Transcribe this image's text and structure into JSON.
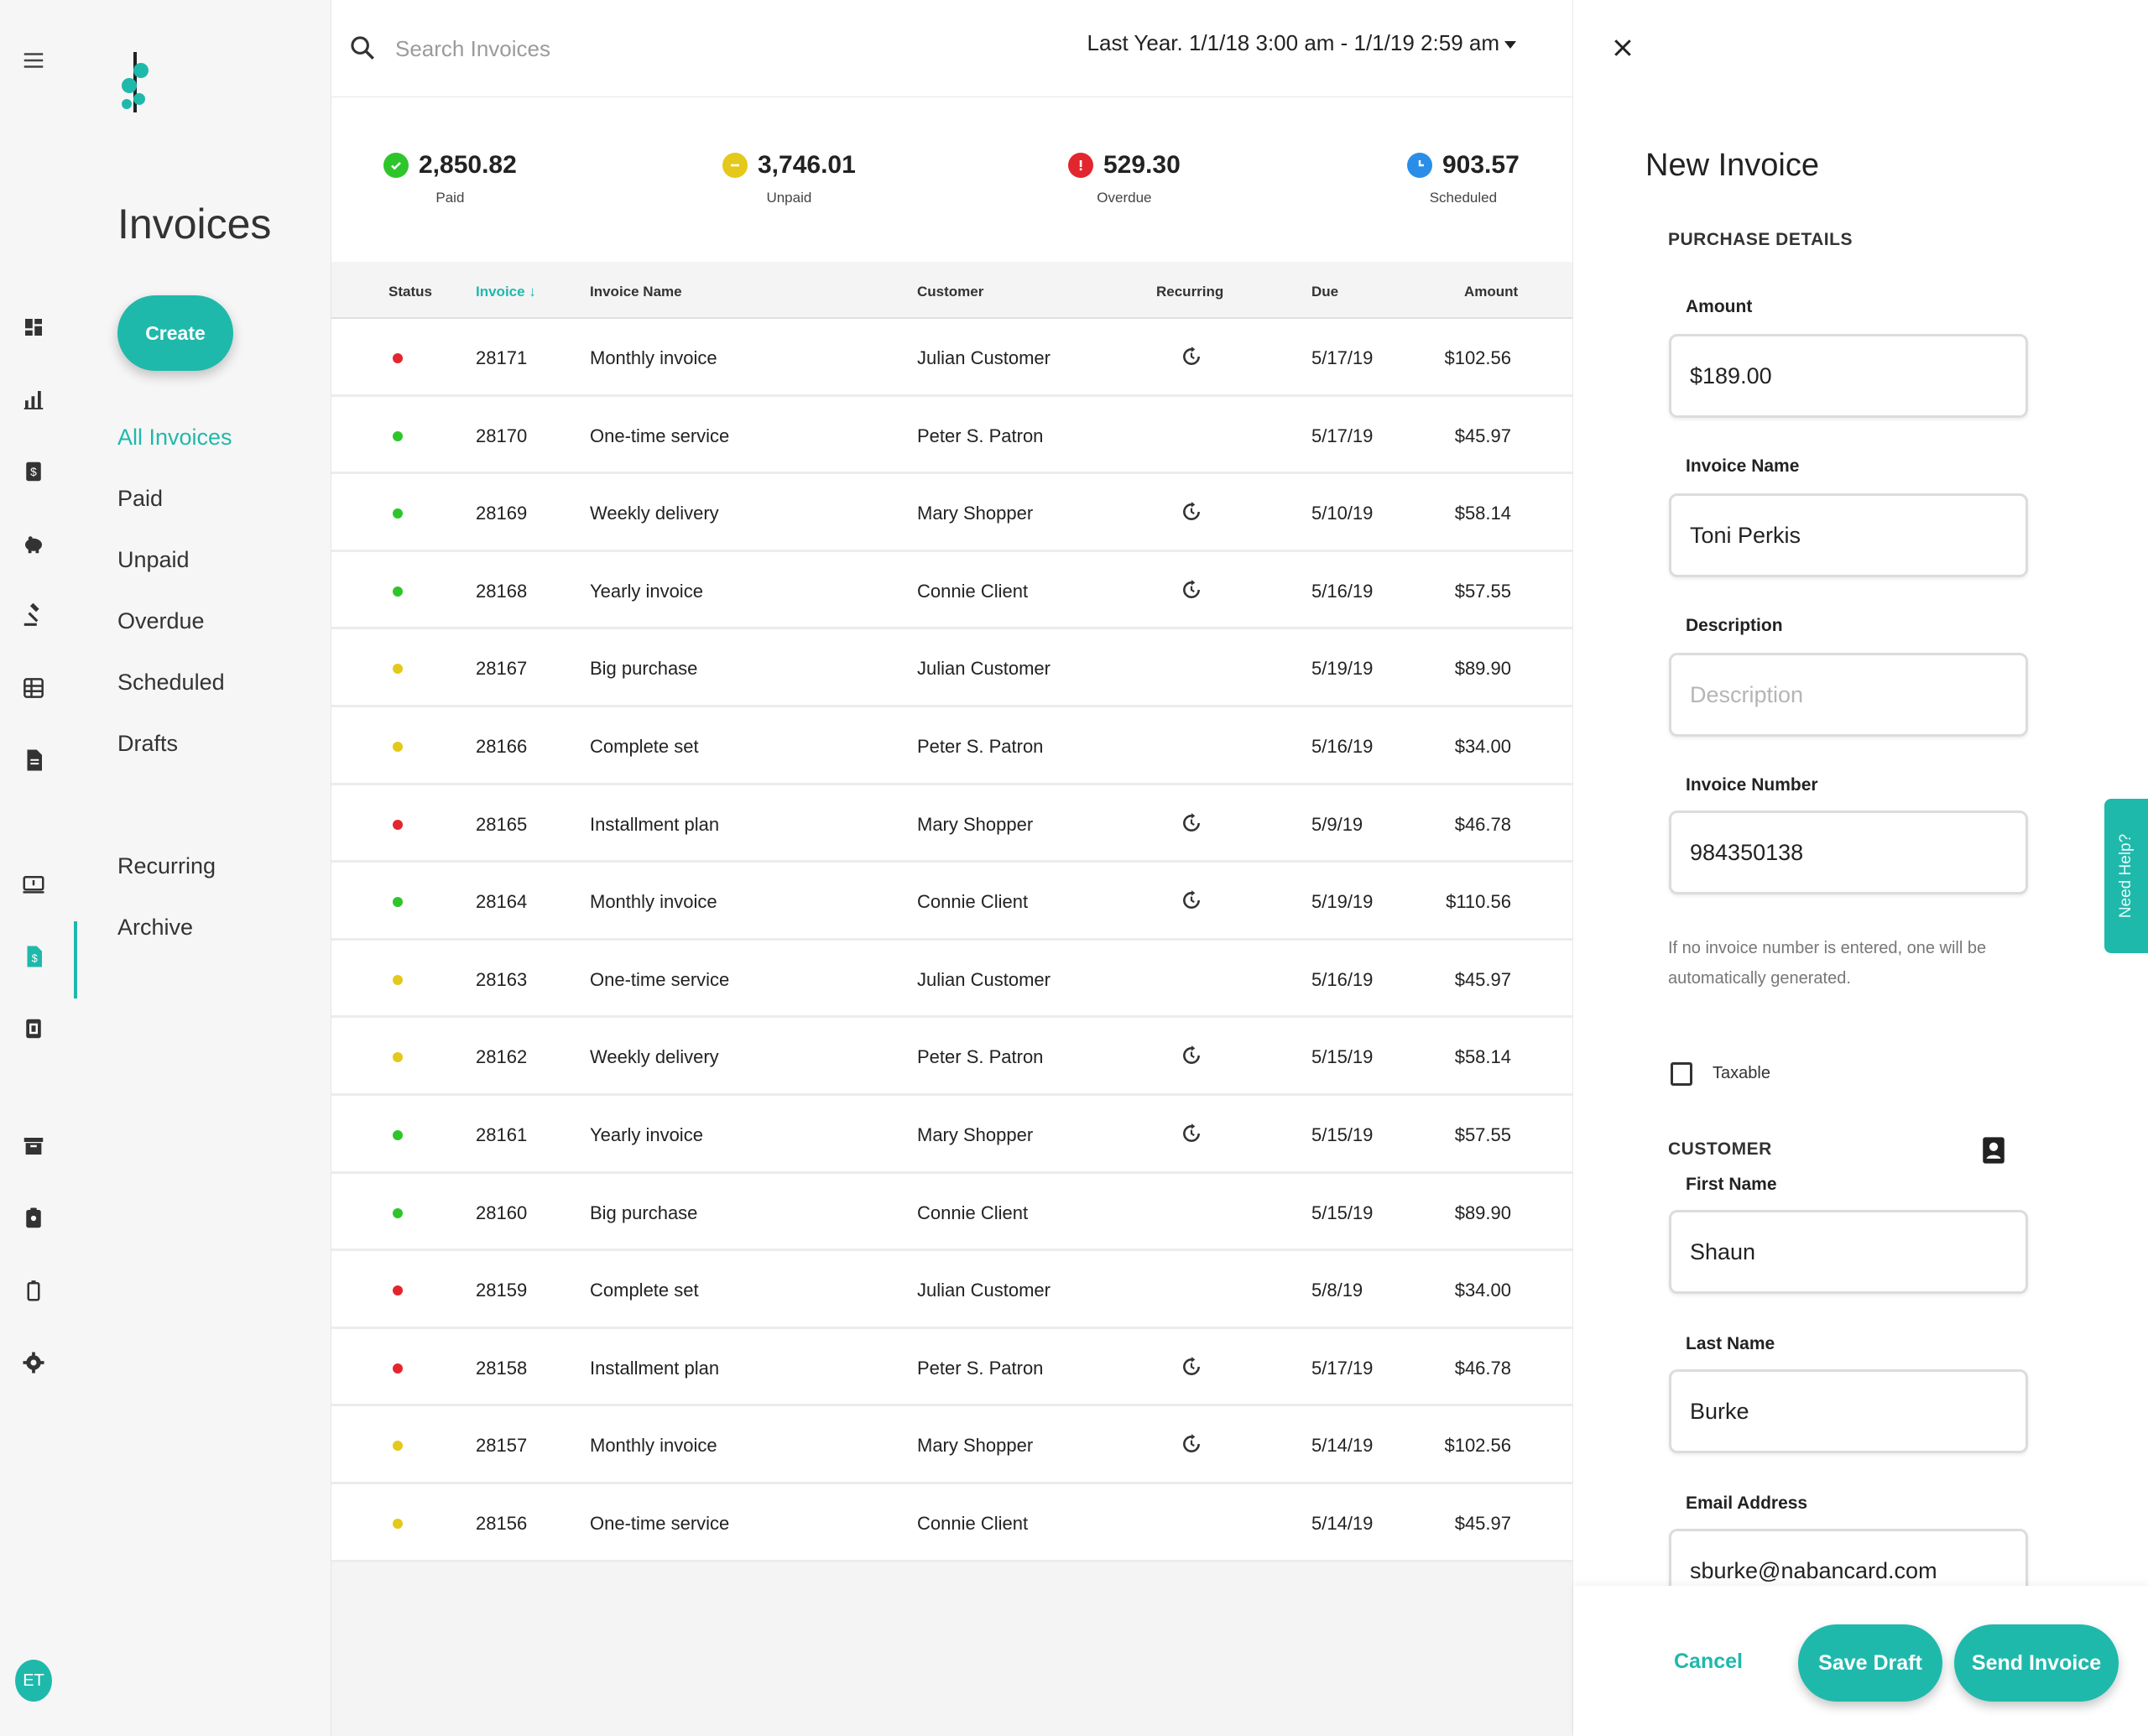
{
  "brand": {
    "accent": "#1fb9ac"
  },
  "user": {
    "initials": "ET"
  },
  "rail": {
    "icons": [
      "menu-icon",
      "dashboard-icon",
      "analytics-icon",
      "dollar-doc-icon",
      "piggy-bank-icon",
      "gavel-icon",
      "grid-table-icon",
      "document-icon",
      "terminal-icon",
      "invoice-icon",
      "receipt-icon",
      "archive-icon",
      "clipboard-icon",
      "battery-icon",
      "gear-icon"
    ]
  },
  "nav": {
    "title": "Invoices",
    "create_label": "Create",
    "items": [
      "All Invoices",
      "Paid",
      "Unpaid",
      "Overdue",
      "Scheduled",
      "Drafts"
    ],
    "items2": [
      "Recurring",
      "Archive"
    ]
  },
  "search": {
    "placeholder": "Search Invoices"
  },
  "date_range": "Last Year. 1/1/18 3:00 am - 1/1/19 2:59 am",
  "summary": [
    {
      "value": "2,850.82",
      "label": "Paid",
      "color": "#2ec52b"
    },
    {
      "value": "3,746.01",
      "label": "Unpaid",
      "color": "#e4c81a"
    },
    {
      "value": "529.30",
      "label": "Overdue",
      "color": "#e3262e"
    },
    {
      "value": "903.57",
      "label": "Scheduled",
      "color": "#2a8ee8"
    }
  ],
  "table": {
    "headers": {
      "status": "Status",
      "invoice": "Invoice",
      "name": "Invoice Name",
      "customer": "Customer",
      "recurring": "Recurring",
      "due": "Due",
      "amount": "Amount"
    },
    "status_colors": {
      "overdue": "#e3262e",
      "paid": "#2ec52b",
      "unpaid": "#e4c81a"
    },
    "rows": [
      {
        "status": "overdue",
        "invoice": "28171",
        "name": "Monthly invoice",
        "customer": "Julian Customer",
        "recurring": true,
        "due": "5/17/19",
        "amount": "$102.56"
      },
      {
        "status": "paid",
        "invoice": "28170",
        "name": "One-time service",
        "customer": "Peter S. Patron",
        "recurring": false,
        "due": "5/17/19",
        "amount": "$45.97"
      },
      {
        "status": "paid",
        "invoice": "28169",
        "name": "Weekly delivery",
        "customer": "Mary Shopper",
        "recurring": true,
        "due": "5/10/19",
        "amount": "$58.14"
      },
      {
        "status": "paid",
        "invoice": "28168",
        "name": "Yearly invoice",
        "customer": "Connie Client",
        "recurring": true,
        "due": "5/16/19",
        "amount": "$57.55"
      },
      {
        "status": "unpaid",
        "invoice": "28167",
        "name": "Big purchase",
        "customer": "Julian Customer",
        "recurring": false,
        "due": "5/19/19",
        "amount": "$89.90"
      },
      {
        "status": "unpaid",
        "invoice": "28166",
        "name": "Complete set",
        "customer": "Peter S. Patron",
        "recurring": false,
        "due": "5/16/19",
        "amount": "$34.00"
      },
      {
        "status": "overdue",
        "invoice": "28165",
        "name": "Installment plan",
        "customer": "Mary Shopper",
        "recurring": true,
        "due": "5/9/19",
        "amount": "$46.78"
      },
      {
        "status": "paid",
        "invoice": "28164",
        "name": "Monthly invoice",
        "customer": "Connie Client",
        "recurring": true,
        "due": "5/19/19",
        "amount": "$110.56"
      },
      {
        "status": "unpaid",
        "invoice": "28163",
        "name": "One-time service",
        "customer": "Julian Customer",
        "recurring": false,
        "due": "5/16/19",
        "amount": "$45.97"
      },
      {
        "status": "unpaid",
        "invoice": "28162",
        "name": "Weekly delivery",
        "customer": "Peter S. Patron",
        "recurring": true,
        "due": "5/15/19",
        "amount": "$58.14"
      },
      {
        "status": "paid",
        "invoice": "28161",
        "name": "Yearly invoice",
        "customer": "Mary Shopper",
        "recurring": true,
        "due": "5/15/19",
        "amount": "$57.55"
      },
      {
        "status": "paid",
        "invoice": "28160",
        "name": "Big purchase",
        "customer": "Connie Client",
        "recurring": false,
        "due": "5/15/19",
        "amount": "$89.90"
      },
      {
        "status": "overdue",
        "invoice": "28159",
        "name": "Complete set",
        "customer": "Julian Customer",
        "recurring": false,
        "due": "5/8/19",
        "amount": "$34.00"
      },
      {
        "status": "overdue",
        "invoice": "28158",
        "name": "Installment plan",
        "customer": "Peter S. Patron",
        "recurring": true,
        "due": "5/17/19",
        "amount": "$46.78"
      },
      {
        "status": "unpaid",
        "invoice": "28157",
        "name": "Monthly invoice",
        "customer": "Mary Shopper",
        "recurring": true,
        "due": "5/14/19",
        "amount": "$102.56"
      },
      {
        "status": "unpaid",
        "invoice": "28156",
        "name": "One-time service",
        "customer": "Connie Client",
        "recurring": false,
        "due": "5/14/19",
        "amount": "$45.97"
      }
    ]
  },
  "panel": {
    "title": "New Invoice",
    "purchase_section": "PURCHASE DETAILS",
    "amount": {
      "label": "Amount",
      "value": "$189.00"
    },
    "invoice_name": {
      "label": "Invoice Name",
      "value": "Toni Perkis"
    },
    "description": {
      "label": "Description",
      "placeholder": "Description",
      "value": ""
    },
    "invoice_number": {
      "label": "Invoice Number",
      "value": "984350138"
    },
    "hint": "If no invoice number is entered, one will be automatically generated.",
    "taxable_label": "Taxable",
    "customer_section": "CUSTOMER",
    "first_name": {
      "label": "First Name",
      "value": "Shaun"
    },
    "last_name": {
      "label": "Last Name",
      "value": "Burke"
    },
    "email": {
      "label": "Email Address",
      "value": "sburke@nabancard.com"
    },
    "cancel_label": "Cancel",
    "save_draft_label": "Save Draft",
    "send_label": "Send Invoice"
  },
  "help_label": "Need Help?"
}
